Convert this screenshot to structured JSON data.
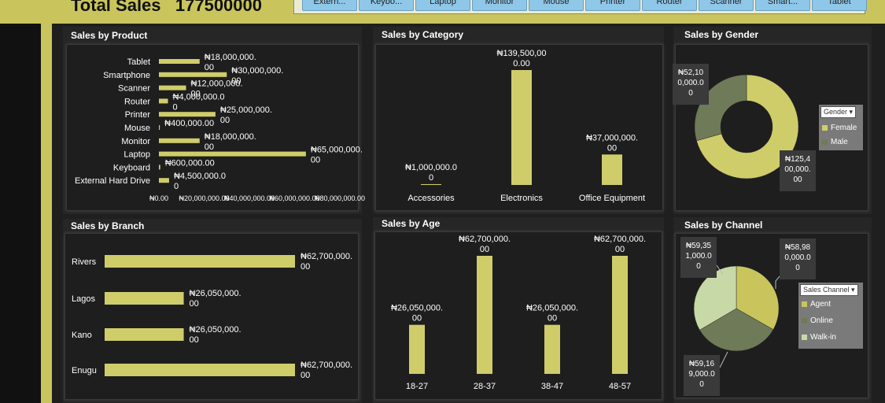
{
  "header": {
    "total_label": "Total Sales",
    "total_value": "177500000"
  },
  "slicer": {
    "items": [
      "Extern...",
      "Keybo...",
      "Laptop",
      "Monitor",
      "Mouse",
      "Printer",
      "Router",
      "Scanner",
      "Smart...",
      "Tablet"
    ]
  },
  "colors": {
    "bar": "#cfcd6a",
    "female": "#cfcd6a",
    "male": "#6f7a58",
    "agent": "#c9c55c",
    "online": "#6f7a58",
    "walkin": "#c8d9a8"
  },
  "chart_data": [
    {
      "type": "bar",
      "orientation": "horizontal",
      "title": "Sales by Product",
      "categories": [
        "Tablet",
        "Smartphone",
        "Scanner",
        "Router",
        "Printer",
        "Mouse",
        "Monitor",
        "Laptop",
        "Keyboard",
        "External Hard Drive"
      ],
      "values": [
        18000000,
        30000000,
        12000000,
        4000000,
        25000000,
        400000,
        18000000,
        65000000,
        600000,
        4500000
      ],
      "labels": [
        "₦18,000,000.\n00",
        "₦30,000,000.\n00",
        "₦12,000,000.\n00",
        "₦4,000,000.0\n0",
        "₦25,000,000.\n00",
        "₦400,000.00",
        "₦18,000,000.\n00",
        "₦65,000,000.\n00",
        "₦600,000.00",
        "₦4,500,000.0\n0"
      ],
      "xticks": [
        "₦0.00",
        "₦20,000,000.00",
        "₦40,000,000.00",
        "₦60,000,000.00",
        "₦80,000,000.00"
      ],
      "xlim": [
        0,
        80000000
      ]
    },
    {
      "type": "bar",
      "title": "Sales by Category",
      "categories": [
        "Accessories",
        "Electronics",
        "Office Equipment"
      ],
      "values": [
        1000000,
        139500000,
        37000000
      ],
      "labels": [
        "₦1,000,000.0\n0",
        "₦139,500,00\n0.00",
        "₦37,000,000.\n00"
      ]
    },
    {
      "type": "pie",
      "subtype": "doughnut",
      "title": "Sales by Gender",
      "categories": [
        "Female",
        "Male"
      ],
      "values": [
        125400000,
        52100000
      ],
      "labels": [
        "₦125,4\n00,000.\n00",
        "₦52,10\n0,000.0\n0"
      ],
      "legend_title": "Gender"
    },
    {
      "type": "bar",
      "orientation": "horizontal",
      "title": "Sales by Branch",
      "categories": [
        "Rivers",
        "Lagos",
        "Kano",
        "Enugu"
      ],
      "values": [
        62700000,
        26050000,
        26050000,
        62700000
      ],
      "labels": [
        "₦62,700,000.\n00",
        "₦26,050,000.\n00",
        "₦26,050,000.\n00",
        "₦62,700,000.\n00"
      ]
    },
    {
      "type": "bar",
      "title": "Sales by Age",
      "categories": [
        "18-27",
        "28-37",
        "38-47",
        "48-57"
      ],
      "values": [
        26050000,
        62700000,
        26050000,
        62700000
      ],
      "labels": [
        "₦26,050,000.\n00",
        "₦62,700,000.\n00",
        "₦26,050,000.\n00",
        "₦62,700,000.\n00"
      ]
    },
    {
      "type": "pie",
      "title": "Sales by Channel",
      "categories": [
        "Agent",
        "Online",
        "Walk-in"
      ],
      "values": [
        58980000,
        59169000,
        59351000
      ],
      "labels": [
        "₦58,98\n0,000.0\n0",
        "₦59,16\n9,000.0\n0",
        "₦59,35\n1,000.0\n0"
      ],
      "legend_title": "Sales Channel"
    }
  ]
}
